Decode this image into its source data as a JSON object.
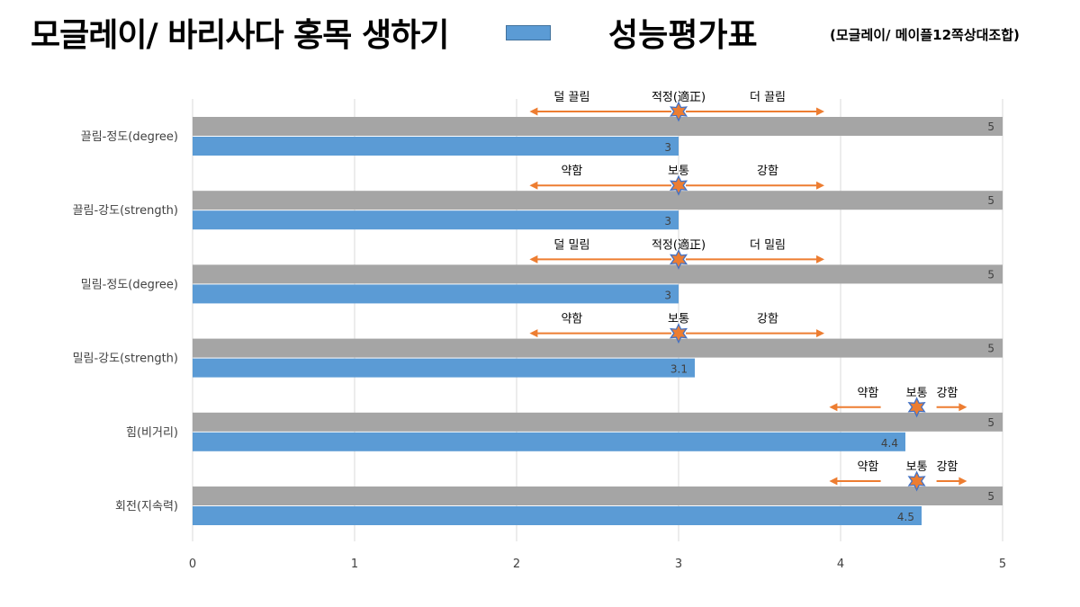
{
  "header": {
    "title": "모글레이/ 바리사다 홍목 생하기",
    "legend_label": "성능평가표",
    "subtitle": "(모글레이/ 메이플12쪽상대조합)"
  },
  "colors": {
    "reference_bar": "#A5A5A5",
    "value_bar": "#5B9BD5",
    "arrow": "#ED7D31",
    "star_fill": "#ED7D31",
    "star_stroke": "#4472C4",
    "grid": "#D9D9D9"
  },
  "chart_data": {
    "type": "bar",
    "orientation": "horizontal",
    "xlim": [
      0,
      5
    ],
    "xticks": [
      "0",
      "1",
      "2",
      "3",
      "4",
      "5"
    ],
    "grid": true,
    "categories": [
      "끌림-정도(degree)",
      "끌림-강도(strength)",
      "밀림-정도(degree)",
      "밀림-강도(strength)",
      "힘(비거리)",
      "회전(지속력)"
    ],
    "series": [
      {
        "name": "",
        "values": [
          5,
          5,
          5,
          5,
          5,
          5
        ],
        "labels": [
          "5",
          "5",
          "5",
          "5",
          "5",
          "5"
        ]
      },
      {
        "name": "성능평가표",
        "values": [
          3,
          3,
          3,
          3.1,
          4.4,
          4.5
        ],
        "labels": [
          "3",
          "3",
          "3",
          "3.1",
          "4.4",
          "4.5"
        ]
      }
    ],
    "annotations": [
      {
        "left": "덜 끌림",
        "center": "적정(適正)",
        "right": "더 끌림",
        "from": 2.08,
        "to": 3.9,
        "star": 3
      },
      {
        "left": "약함",
        "center": "보통",
        "right": "강함",
        "from": 2.08,
        "to": 3.9,
        "star": 3
      },
      {
        "left": "덜 밀림",
        "center": "적정(適正)",
        "right": "더 밀림",
        "from": 2.08,
        "to": 3.9,
        "star": 3
      },
      {
        "left": "약함",
        "center": "보통",
        "right": "강함",
        "from": 2.08,
        "to": 3.9,
        "star": 3
      },
      {
        "left": "약함",
        "center": "보통",
        "right": "강함",
        "from": 3.93,
        "to": 4.78,
        "star": 4.47
      },
      {
        "left": "약함",
        "center": "보통",
        "right": "강함",
        "from": 3.93,
        "to": 4.78,
        "star": 4.47
      }
    ]
  }
}
